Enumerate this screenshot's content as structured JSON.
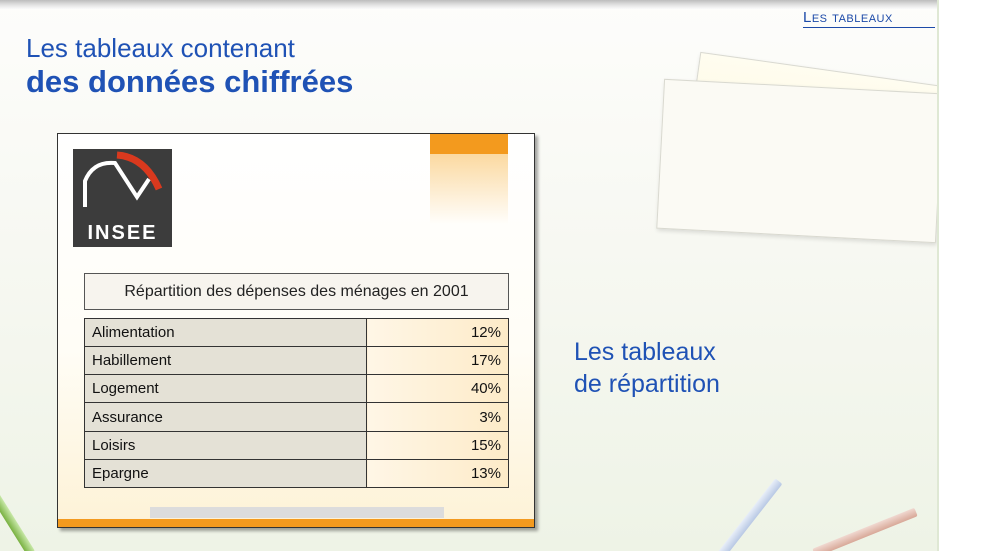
{
  "header": {
    "section_tag": "Les tableaux",
    "title_line1": "Les tableaux contenant",
    "title_line2": "des données chiffrées"
  },
  "logo": {
    "text": "INSEE"
  },
  "table": {
    "caption": "Répartition des dépenses des ménages en 2001",
    "rows": [
      {
        "label": "Alimentation",
        "value": "12%"
      },
      {
        "label": "Habillement",
        "value": "17%"
      },
      {
        "label": "Logement",
        "value": "40%"
      },
      {
        "label": "Assurance",
        "value": "3%"
      },
      {
        "label": "Loisirs",
        "value": "15%"
      },
      {
        "label": "Epargne",
        "value": "13%"
      }
    ]
  },
  "side": {
    "line1": "Les tableaux",
    "line2": "de répartition"
  },
  "colors": {
    "title": "#1f52b5",
    "accent_orange": "#f39a1e",
    "logo_bg": "#3c3c3c"
  }
}
